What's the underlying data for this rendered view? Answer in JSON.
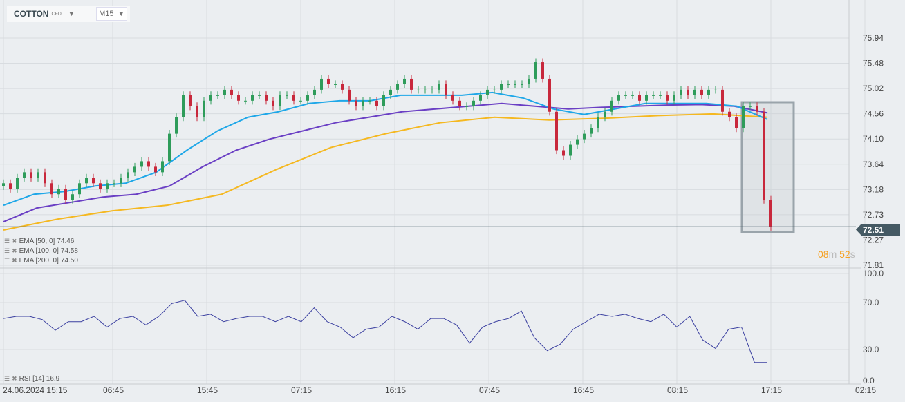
{
  "header": {
    "symbol": "COTTON",
    "type": "CFD",
    "timeframe": "M15"
  },
  "price_axis": [
    "75.94",
    "75.48",
    "75.02",
    "74.56",
    "74.10",
    "73.64",
    "73.18",
    "72.73",
    "72.27",
    "71.81"
  ],
  "rsi_axis": [
    "100.0",
    "70.0",
    "30.0",
    "0.0"
  ],
  "time_axis": [
    "24.06.2024 15:15",
    "06:45",
    "15:45",
    "07:15",
    "16:15",
    "07:45",
    "16:45",
    "08:15",
    "17:15",
    "02:15"
  ],
  "current_price": "72.51",
  "countdown": {
    "min": "08",
    "min_unit": "m",
    "sec": "52",
    "sec_unit": "s"
  },
  "indicators": [
    {
      "label": "EMA [50, 0]",
      "value": "74.46",
      "color": "#1ea7e8"
    },
    {
      "label": "EMA [100, 0]",
      "value": "74.58",
      "color": "#6a3fc4"
    },
    {
      "label": "EMA [200, 0]",
      "value": "74.50",
      "color": "#f5b820"
    }
  ],
  "rsi": {
    "label": "RSI [14]",
    "value": "16.9",
    "color": "#3a3fa0"
  },
  "colors": {
    "up": "#2e9c5a",
    "down": "#c8283c"
  },
  "chart_data": {
    "type": "candlestick",
    "closes": [
      73.3,
      73.2,
      73.4,
      73.5,
      73.4,
      73.5,
      73.3,
      73.1,
      73.2,
      73.0,
      73.1,
      73.3,
      73.4,
      73.3,
      73.2,
      73.3,
      73.3,
      73.4,
      73.5,
      73.6,
      73.7,
      73.6,
      73.5,
      73.7,
      74.2,
      74.5,
      74.9,
      74.7,
      74.5,
      74.8,
      74.9,
      74.9,
      75.0,
      74.9,
      74.8,
      74.8,
      74.9,
      74.9,
      74.8,
      74.7,
      74.9,
      74.9,
      74.8,
      74.8,
      74.9,
      75.0,
      75.2,
      75.1,
      75.1,
      75.0,
      74.8,
      74.7,
      74.8,
      74.8,
      74.7,
      74.9,
      75.0,
      75.1,
      75.2,
      75.0,
      75.0,
      75.0,
      75.0,
      75.1,
      74.9,
      74.8,
      74.7,
      74.7,
      74.8,
      74.9,
      75.0,
      75.0,
      75.1,
      75.1,
      75.1,
      75.1,
      75.2,
      75.5,
      75.2,
      74.6,
      73.9,
      73.8,
      74.0,
      74.1,
      74.2,
      74.3,
      74.5,
      74.6,
      74.8,
      74.9,
      74.9,
      74.9,
      74.8,
      74.9,
      74.9,
      74.9,
      74.8,
      74.9,
      75.0,
      74.9,
      75.0,
      74.9,
      75.0,
      75.0,
      74.6,
      74.5,
      74.3,
      74.7,
      74.7,
      74.6,
      73.0,
      72.51
    ],
    "ema50": [
      72.9,
      73.1,
      73.15,
      73.25,
      73.3,
      73.5,
      73.9,
      74.25,
      74.5,
      74.6,
      74.75,
      74.8,
      74.8,
      74.9,
      74.9,
      74.9,
      74.95,
      74.85,
      74.65,
      74.55,
      74.65,
      74.75,
      74.75,
      74.75,
      74.7,
      74.46
    ],
    "ema100": [
      72.6,
      72.85,
      72.95,
      73.05,
      73.1,
      73.25,
      73.6,
      73.9,
      74.1,
      74.25,
      74.4,
      74.5,
      74.6,
      74.65,
      74.7,
      74.75,
      74.7,
      74.65,
      74.68,
      74.7,
      74.72,
      74.73,
      74.7,
      74.58
    ],
    "ema200": [
      72.45,
      72.65,
      72.8,
      72.9,
      73.1,
      73.55,
      73.95,
      74.2,
      74.4,
      74.5,
      74.45,
      74.48,
      74.53,
      74.56,
      74.5
    ],
    "rsi": [
      58,
      60,
      60,
      57,
      47,
      55,
      55,
      60,
      50,
      58,
      60,
      52,
      60,
      72,
      75,
      60,
      62,
      55,
      58,
      60,
      60,
      55,
      60,
      55,
      68,
      55,
      50,
      40,
      48,
      50,
      60,
      55,
      48,
      58,
      58,
      52,
      35,
      50,
      55,
      58,
      65,
      40,
      28,
      34,
      48,
      55,
      62,
      60,
      62,
      58,
      55,
      62,
      50,
      60,
      38,
      30,
      48,
      50,
      17,
      16.9
    ],
    "price_range": [
      71.81,
      75.94
    ],
    "rsi_range": [
      0,
      100
    ]
  }
}
